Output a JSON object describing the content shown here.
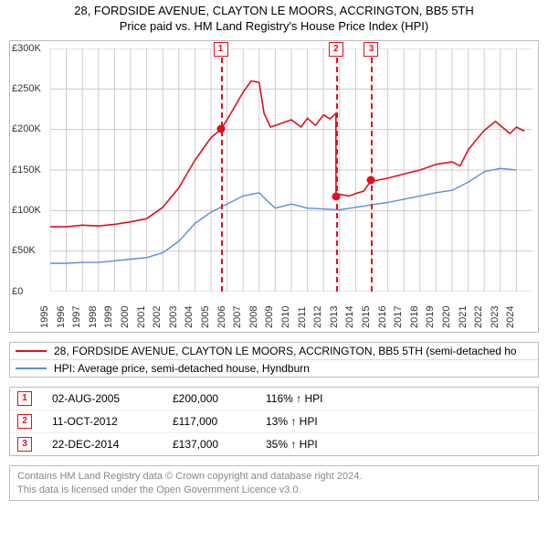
{
  "title_l1": "28, FORDSIDE AVENUE, CLAYTON LE MOORS, ACCRINGTON, BB5 5TH",
  "title_l2": "Price paid vs. HM Land Registry's House Price Index (HPI)",
  "chart": {
    "type": "line",
    "background_color": "#ffffff",
    "grid_color": "#cccccc",
    "axis_color": "#444444",
    "xlim": [
      1995,
      2025
    ],
    "ylim": [
      0,
      300000
    ],
    "ytick_step": 50000,
    "yticks": [
      "£0",
      "£50K",
      "£100K",
      "£150K",
      "£200K",
      "£250K",
      "£300K"
    ],
    "xticks": [
      1995,
      1996,
      1997,
      1998,
      1999,
      2000,
      2001,
      2002,
      2003,
      2004,
      2005,
      2006,
      2007,
      2008,
      2009,
      2010,
      2011,
      2012,
      2013,
      2014,
      2015,
      2016,
      2017,
      2018,
      2019,
      2020,
      2021,
      2022,
      2023,
      2024
    ],
    "label_fontsize": 11,
    "series": [
      {
        "name": "price_paid",
        "color": "#e01020",
        "width": 1.6,
        "points": [
          [
            1995,
            80000
          ],
          [
            1996,
            80000
          ],
          [
            1997,
            82000
          ],
          [
            1998,
            81000
          ],
          [
            1999,
            83000
          ],
          [
            2000,
            86000
          ],
          [
            2001,
            90000
          ],
          [
            2002,
            104000
          ],
          [
            2003,
            128000
          ],
          [
            2004,
            162000
          ],
          [
            2005,
            190000
          ],
          [
            2005.6,
            200000
          ],
          [
            2006,
            212000
          ],
          [
            2007,
            246000
          ],
          [
            2007.5,
            260000
          ],
          [
            2008,
            258000
          ],
          [
            2008.3,
            220000
          ],
          [
            2008.7,
            203000
          ],
          [
            2009,
            205000
          ],
          [
            2010,
            212000
          ],
          [
            2010.6,
            203000
          ],
          [
            2011,
            214000
          ],
          [
            2011.5,
            205000
          ],
          [
            2012,
            218000
          ],
          [
            2012.4,
            213000
          ],
          [
            2012.77,
            220000
          ],
          [
            2012.78,
            117000
          ],
          [
            2013,
            120000
          ],
          [
            2013.6,
            118000
          ],
          [
            2014,
            121000
          ],
          [
            2014.5,
            124000
          ],
          [
            2014.97,
            137000
          ],
          [
            2015,
            136000
          ],
          [
            2016,
            140000
          ],
          [
            2017,
            145000
          ],
          [
            2018,
            150000
          ],
          [
            2019,
            157000
          ],
          [
            2020,
            160000
          ],
          [
            2020.5,
            155000
          ],
          [
            2021,
            175000
          ],
          [
            2022,
            199000
          ],
          [
            2022.7,
            210000
          ],
          [
            2023,
            205000
          ],
          [
            2023.6,
            195000
          ],
          [
            2024,
            203000
          ],
          [
            2024.5,
            198000
          ]
        ]
      },
      {
        "name": "hpi",
        "color": "#5b8fd6",
        "width": 1.4,
        "points": [
          [
            1995,
            35000
          ],
          [
            1996,
            35000
          ],
          [
            1997,
            36000
          ],
          [
            1998,
            36000
          ],
          [
            1999,
            38000
          ],
          [
            2000,
            40000
          ],
          [
            2001,
            42000
          ],
          [
            2002,
            48000
          ],
          [
            2003,
            62000
          ],
          [
            2004,
            84000
          ],
          [
            2005,
            98000
          ],
          [
            2006,
            108000
          ],
          [
            2007,
            118000
          ],
          [
            2008,
            122000
          ],
          [
            2008.5,
            112000
          ],
          [
            2009,
            103000
          ],
          [
            2010,
            108000
          ],
          [
            2011,
            103000
          ],
          [
            2012,
            102000
          ],
          [
            2013,
            101000
          ],
          [
            2014,
            104000
          ],
          [
            2015,
            107000
          ],
          [
            2016,
            110000
          ],
          [
            2017,
            114000
          ],
          [
            2018,
            118000
          ],
          [
            2019,
            122000
          ],
          [
            2020,
            125000
          ],
          [
            2021,
            135000
          ],
          [
            2022,
            148000
          ],
          [
            2023,
            152000
          ],
          [
            2024,
            150000
          ]
        ]
      }
    ],
    "marker_color": "#e01020",
    "markers": [
      {
        "n": "1",
        "year": 2005.6
      },
      {
        "n": "2",
        "year": 2012.78
      },
      {
        "n": "3",
        "year": 2014.97
      }
    ],
    "sale_dots": [
      {
        "year": 2005.6,
        "value": 200000
      },
      {
        "year": 2012.78,
        "value": 117000
      },
      {
        "year": 2014.97,
        "value": 137000
      }
    ]
  },
  "legend": [
    {
      "color": "#e01020",
      "label": "28, FORDSIDE AVENUE, CLAYTON LE MOORS, ACCRINGTON, BB5 5TH (semi-detached ho"
    },
    {
      "color": "#5b8fd6",
      "label": "HPI: Average price, semi-detached house, Hyndburn"
    }
  ],
  "sales": [
    {
      "n": "1",
      "date": "02-AUG-2005",
      "price": "£200,000",
      "delta": "116% ↑ HPI"
    },
    {
      "n": "2",
      "date": "11-OCT-2012",
      "price": "£117,000",
      "delta": "13% ↑ HPI"
    },
    {
      "n": "3",
      "date": "22-DEC-2014",
      "price": "£137,000",
      "delta": "35% ↑ HPI"
    }
  ],
  "footer_l1": "Contains HM Land Registry data © Crown copyright and database right 2024.",
  "footer_l2": "This data is licensed under the Open Government Licence v3.0."
}
